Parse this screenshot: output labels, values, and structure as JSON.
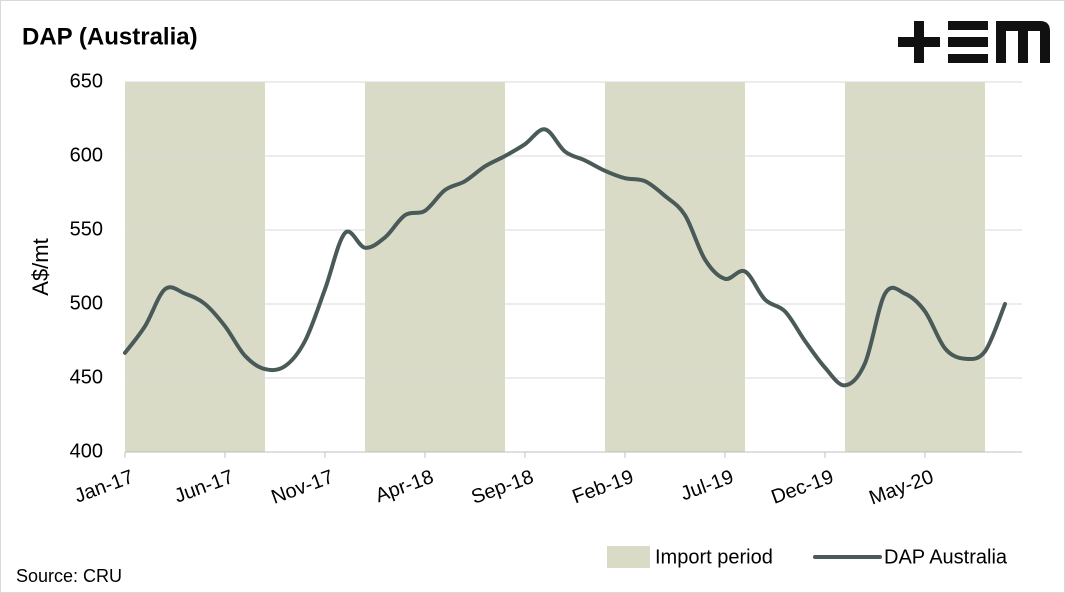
{
  "chart_data": {
    "type": "line",
    "title": "DAP (Australia)",
    "y_label": "A$/mt",
    "source": "Source: CRU",
    "categories": [
      "Jan-17",
      null,
      null,
      null,
      null,
      "Jun-17",
      null,
      null,
      null,
      null,
      "Nov-17",
      null,
      null,
      null,
      null,
      "Apr-18",
      null,
      null,
      null,
      null,
      "Sep-18",
      null,
      null,
      null,
      null,
      "Feb-19",
      null,
      null,
      null,
      null,
      "Jul-19",
      null,
      null,
      null,
      null,
      "Dec-19",
      null,
      null,
      null,
      null,
      "May-20",
      null,
      null,
      null,
      null
    ],
    "series": [
      {
        "name": "DAP Australia",
        "color": "#4a5a58",
        "values": [
          467,
          485,
          510,
          507,
          500,
          485,
          465,
          456,
          458,
          475,
          510,
          548,
          538,
          545,
          560,
          563,
          577,
          583,
          593,
          600,
          608,
          618,
          603,
          597,
          590,
          585,
          583,
          573,
          560,
          530,
          517,
          522,
          503,
          495,
          475,
          457,
          445,
          460,
          507,
          507,
          495,
          470,
          463,
          468,
          500
        ]
      }
    ],
    "import_periods": {
      "name": "Import period",
      "color": "#d9dbc6",
      "ranges": [
        [
          0,
          7
        ],
        [
          12,
          19
        ],
        [
          24,
          31
        ],
        [
          36,
          43
        ]
      ]
    },
    "ylim": [
      400,
      650
    ],
    "yticks": [
      400,
      450,
      500,
      550,
      600,
      650
    ],
    "grid": true
  }
}
